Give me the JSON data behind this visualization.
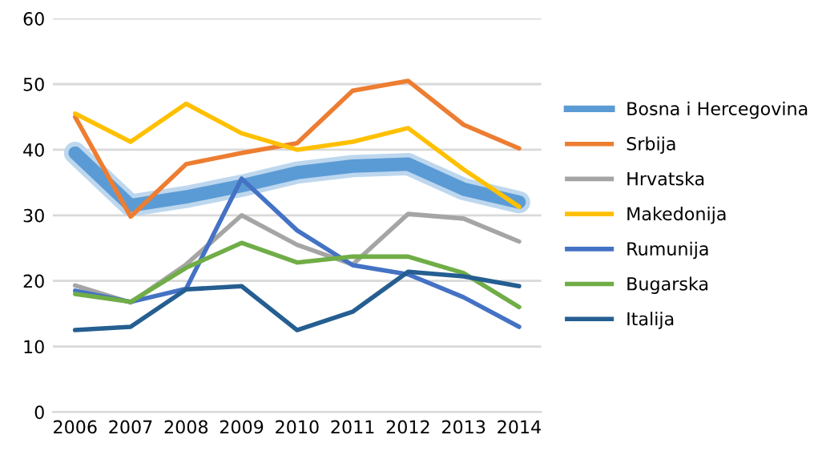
{
  "chart_data": {
    "type": "line",
    "categories": [
      "2006",
      "2007",
      "2008",
      "2009",
      "2010",
      "2011",
      "2012",
      "2013",
      "2014"
    ],
    "series": [
      {
        "name": "Bosna i Hercegovina",
        "color": "#5b9bd5",
        "values": [
          39.5,
          31.5,
          32.8,
          34.5,
          36.5,
          37.5,
          37.8,
          34,
          32
        ]
      },
      {
        "name": "Srbija",
        "color": "#ed7d31",
        "values": [
          45,
          29.8,
          37.8,
          39.5,
          41,
          49,
          50.5,
          43.8,
          40.2
        ]
      },
      {
        "name": "Hrvatska",
        "color": "#a5a5a5",
        "values": [
          19.3,
          16.7,
          22.5,
          30,
          25.5,
          22.5,
          30.2,
          29.5,
          26
        ]
      },
      {
        "name": "Makedonija",
        "color": "#ffc000",
        "values": [
          45.5,
          41.2,
          47,
          42.5,
          40,
          41.2,
          43.3,
          37,
          31.3
        ]
      },
      {
        "name": "Rumunija",
        "color": "#4472c4",
        "values": [
          18.5,
          16.8,
          18.8,
          35.6,
          27.7,
          22.4,
          21,
          17.5,
          13
        ]
      },
      {
        "name": "Bugarska",
        "color": "#70ad47",
        "values": [
          18,
          16.8,
          22,
          25.8,
          22.8,
          23.7,
          23.7,
          21.2,
          16
        ]
      },
      {
        "name": "Italija",
        "color": "#255e91",
        "values": [
          12.5,
          13,
          18.7,
          19.2,
          12.5,
          15.3,
          21.4,
          20.7,
          19.2
        ]
      }
    ],
    "ylim": [
      0,
      60
    ],
    "yticks": [
      0,
      10,
      20,
      30,
      40,
      50,
      60
    ],
    "grid": "y",
    "legend": "right",
    "marker": "none",
    "line_style": "solid"
  }
}
